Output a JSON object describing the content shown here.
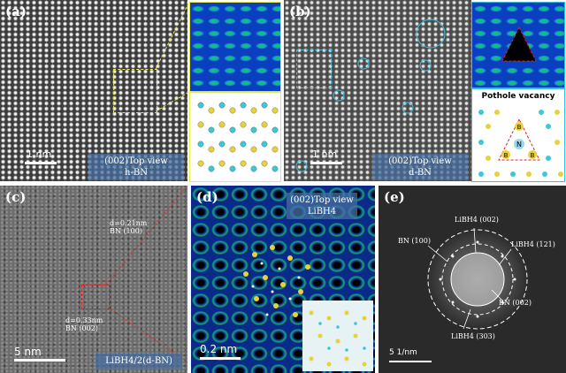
{
  "panels": {
    "a": {
      "label": "(a)",
      "caption_line1": "(002)Top view",
      "caption_line2": "h-BN",
      "scale": "1 nm"
    },
    "b": {
      "label": "(b)",
      "caption_line1": "(002)Top view",
      "caption_line2": "d-BN",
      "scale": "1 nm",
      "inset_title": "Pothole vacancy",
      "atom_b": "B",
      "atom_n": "N"
    },
    "c": {
      "label": "(c)",
      "annot1_line1": "d=0.21nm",
      "annot1_line2": "BN (100)",
      "annot2_line1": "d=0.33nm",
      "annot2_line2": "BN (002)",
      "scale": "5 nm",
      "caption": "LiBH4/2(d-BN)"
    },
    "d": {
      "label": "(d)",
      "caption_line1": "(002)Top view",
      "caption_line2": "LiBH4",
      "scale": "0.2 nm"
    },
    "e": {
      "label": "(e)",
      "ring1": "LiBH4 (002)",
      "ring2": "BN (100)",
      "ring3": "LiBH4 (121)",
      "ring4": "BN (002)",
      "ring5": "LiBH4 (303)",
      "scale": "5 1/nm"
    }
  },
  "colors": {
    "zoom_outline_a": "#e8e84a",
    "zoom_outline_b": "#39c0e0",
    "atom_yellow": "#e8d23a",
    "atom_cyan": "#3cc8d8",
    "vacancy_red": "#e02020"
  }
}
